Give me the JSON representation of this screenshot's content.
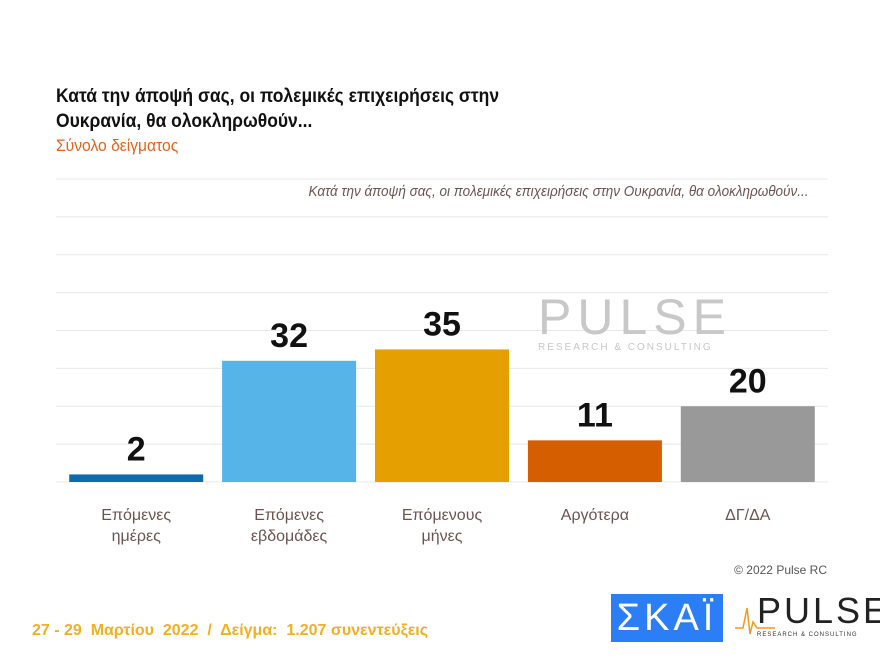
{
  "title": "Κατά την άποψή σας, οι πολεμικές επιχειρήσεις στην Ουκρανία, θα ολοκληρωθούν...",
  "subtitle": "Σύνολο δείγματος",
  "chart_data": {
    "type": "bar",
    "title": "Κατά την άποψή σας, οι πολεμικές επιχειρήσεις στην Ουκρανία, θα ολοκληρωθούν...",
    "categories": [
      [
        "Επόμενες",
        "ημέρες"
      ],
      [
        "Επόμενες",
        "εβδομάδες"
      ],
      [
        "Επόμενους",
        "μήνες"
      ],
      [
        "Αργότερα"
      ],
      [
        "ΔΓ/ΔΑ"
      ]
    ],
    "values": [
      2,
      32,
      35,
      11,
      20
    ],
    "colors": [
      "#0e6aa8",
      "#56b4e9",
      "#e69f00",
      "#d55e00",
      "#999999"
    ],
    "ylim": [
      0,
      80
    ],
    "grid": true
  },
  "watermark": {
    "brand": "PULSE",
    "tagline": "RESEARCH & CONSULTING"
  },
  "copyright": "© 2022 Pulse RC",
  "footer": "27 - 29  Μαρτίου  2022  /  Δείγμα:  1.207 συνεντεύξεις",
  "logos": {
    "skai": "ΣΚΑΪ",
    "pulse": "PULSE",
    "pulse_tagline": "RESEARCH & CONSULTING"
  }
}
